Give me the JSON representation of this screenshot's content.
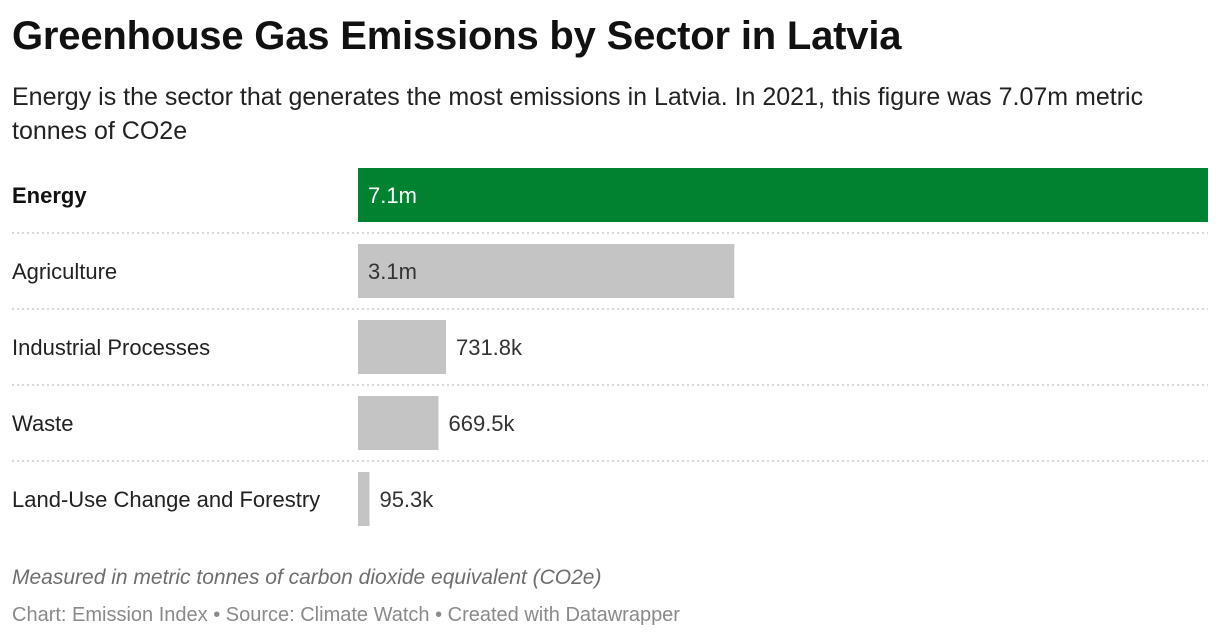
{
  "header": {
    "title": "Greenhouse Gas Emissions by Sector in Latvia",
    "subtitle": "Energy is the sector that generates the most emissions in Latvia. In 2021, this figure was 7.07m metric tonnes of CO2e"
  },
  "colors": {
    "highlight": "#008330",
    "default_bar": "#c4c4c4",
    "highlight_text": "#ffffff",
    "bar_text": "#333333",
    "separator": "#cccccc"
  },
  "chart_data": {
    "type": "bar",
    "orientation": "horizontal",
    "categories": [
      "Energy",
      "Agriculture",
      "Industrial Processes",
      "Waste",
      "Land-Use Change and Forestry"
    ],
    "values": [
      7070000,
      3130000,
      731800,
      669500,
      95300
    ],
    "value_labels": [
      "7.1m",
      "3.1m",
      "731.8k",
      "669.5k",
      "95.3k"
    ],
    "highlighted": [
      true,
      false,
      false,
      false,
      false
    ],
    "title": "Greenhouse Gas Emissions by Sector in Latvia",
    "xlabel": "",
    "ylabel": "",
    "xlim": [
      0,
      7070000
    ],
    "grid": false,
    "legend": "none"
  },
  "footer": {
    "note": "Measured in metric tonnes of carbon dioxide equivalent (CO2e)",
    "source": "Chart: Emission Index • Source: Climate Watch • Created with Datawrapper"
  }
}
